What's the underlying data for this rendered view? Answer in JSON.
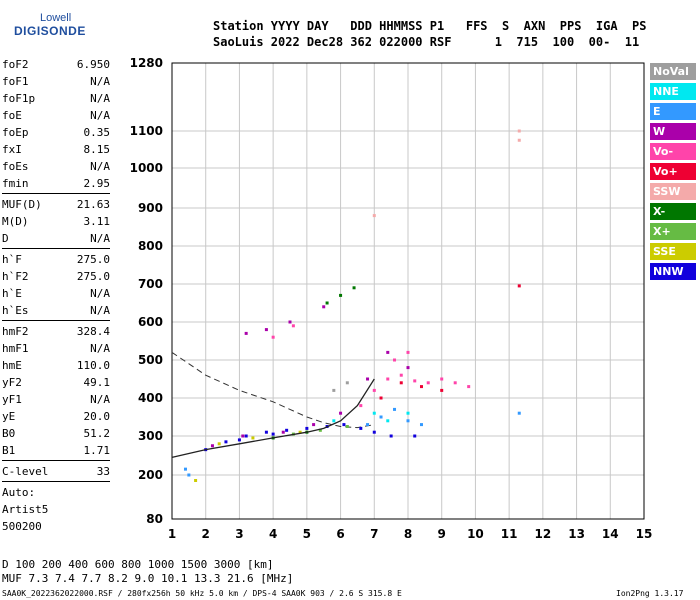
{
  "logo": {
    "top": "Lowell",
    "bottom": "DIGISONDE"
  },
  "header": {
    "labels": "Station YYYY DAY   DDD HHMMSS P1   FFS  S  AXN  PPS  IGA  PS",
    "values": "SaoLuis 2022 Dec28 362 022000 RSF      1  715  100  00-  11"
  },
  "params": [
    {
      "name": "foF2",
      "value": "6.950"
    },
    {
      "name": "foF1",
      "value": "N/A"
    },
    {
      "name": "foF1p",
      "value": "N/A"
    },
    {
      "name": "foE",
      "value": "N/A"
    },
    {
      "name": "foEp",
      "value": "0.35"
    },
    {
      "name": "fxI",
      "value": "8.15"
    },
    {
      "name": "foEs",
      "value": "N/A"
    },
    {
      "name": "fmin",
      "value": "2.95"
    },
    {
      "name": "MUF(D)",
      "value": "21.63"
    },
    {
      "name": "M(D)",
      "value": "3.11"
    },
    {
      "name": "D",
      "value": "N/A"
    },
    {
      "name": "h`F",
      "value": "275.0"
    },
    {
      "name": "h`F2",
      "value": "275.0"
    },
    {
      "name": "h`E",
      "value": "N/A"
    },
    {
      "name": "h`Es",
      "value": "N/A"
    },
    {
      "name": "hmF2",
      "value": "328.4"
    },
    {
      "name": "hmF1",
      "value": "N/A"
    },
    {
      "name": "hmE",
      "value": "110.0"
    },
    {
      "name": "yF2",
      "value": "49.1"
    },
    {
      "name": "yF1",
      "value": "N/A"
    },
    {
      "name": "yE",
      "value": "20.0"
    },
    {
      "name": "B0",
      "value": "51.2"
    },
    {
      "name": "B1",
      "value": "1.71"
    },
    {
      "name": "C-level",
      "value": "33"
    }
  ],
  "auto": {
    "line1": "Auto:",
    "line2": "Artist5",
    "line3": "500200"
  },
  "legend": [
    {
      "label": "NoVal",
      "color": "#9e9e9e"
    },
    {
      "label": "NNE",
      "color": "#00e8f0"
    },
    {
      "label": "E",
      "color": "#3399ff"
    },
    {
      "label": "W",
      "color": "#aa00aa"
    },
    {
      "label": "Vo-",
      "color": "#ff44aa"
    },
    {
      "label": "Vo+",
      "color": "#ee0033"
    },
    {
      "label": "SSW",
      "color": "#f4aaaa"
    },
    {
      "label": "X-",
      "color": "#007700"
    },
    {
      "label": "X+",
      "color": "#66bb44"
    },
    {
      "label": "SSE",
      "color": "#cccc00"
    },
    {
      "label": "NNW",
      "color": "#1100dd"
    }
  ],
  "footer": {
    "d_line": "D     100  200  400  600  800 1000 1500 3000 [km]",
    "muf_line": "MUF   7.3  7.4  7.7  8.2  9.0 10.1 13.3 21.6 [MHz]",
    "file_line": "SAA0K_2022362022000.RSF / 280fx256h 50 kHz 5.0 km / DPS-4 SAA0K 903 / 2.6 S 315.8 E",
    "version": "Ion2Png 1.3.17"
  },
  "chart_data": {
    "type": "scatter",
    "xlim": [
      1,
      15
    ],
    "ylim": [
      80,
      1280
    ],
    "xticks": [
      "1",
      "2",
      "3",
      "4",
      "5",
      "6",
      "7",
      "8",
      "9",
      "10",
      "11",
      "12",
      "13",
      "14",
      "15"
    ],
    "yticks": [
      "80",
      "200",
      "300",
      "400",
      "500",
      "600",
      "700",
      "800",
      "900",
      "1000",
      "1100",
      "1280"
    ],
    "yscale": "ionogram (compressed virtual height)",
    "grid": true,
    "legend_position": "right",
    "series": [
      {
        "name": "NNW",
        "color": "#1100dd",
        "points": [
          [
            2.0,
            265
          ],
          [
            2.6,
            285
          ],
          [
            3.2,
            300
          ],
          [
            3.8,
            310
          ],
          [
            4.4,
            315
          ],
          [
            5.0,
            320
          ],
          [
            5.6,
            325
          ],
          [
            6.1,
            330
          ],
          [
            6.6,
            320
          ],
          [
            7.0,
            310
          ],
          [
            7.5,
            300
          ],
          [
            8.2,
            300
          ],
          [
            3.0,
            290
          ],
          [
            4.0,
            305
          ]
        ]
      },
      {
        "name": "Vo-",
        "color": "#ff44aa",
        "points": [
          [
            6.6,
            380
          ],
          [
            7.0,
            420
          ],
          [
            7.4,
            450
          ],
          [
            7.8,
            460
          ],
          [
            8.2,
            445
          ],
          [
            8.6,
            440
          ],
          [
            9.0,
            450
          ],
          [
            9.4,
            440
          ],
          [
            9.8,
            430
          ],
          [
            7.6,
            500
          ],
          [
            8.0,
            520
          ],
          [
            4.0,
            560
          ],
          [
            4.6,
            590
          ]
        ]
      },
      {
        "name": "Vo+",
        "color": "#ee0033",
        "points": [
          [
            7.2,
            400
          ],
          [
            7.8,
            440
          ],
          [
            8.4,
            430
          ],
          [
            9.0,
            420
          ],
          [
            11.3,
            695
          ]
        ]
      },
      {
        "name": "W",
        "color": "#aa00aa",
        "points": [
          [
            2.2,
            275
          ],
          [
            3.1,
            300
          ],
          [
            4.3,
            310
          ],
          [
            5.2,
            330
          ],
          [
            6.0,
            360
          ],
          [
            6.8,
            450
          ],
          [
            7.4,
            520
          ],
          [
            8.0,
            480
          ],
          [
            3.2,
            570
          ],
          [
            3.8,
            580
          ],
          [
            4.5,
            600
          ],
          [
            5.5,
            640
          ]
        ]
      },
      {
        "name": "E",
        "color": "#3399ff",
        "points": [
          [
            6.8,
            330
          ],
          [
            7.2,
            350
          ],
          [
            7.6,
            370
          ],
          [
            8.0,
            340
          ],
          [
            8.4,
            330
          ],
          [
            1.4,
            215
          ],
          [
            1.5,
            200
          ],
          [
            11.3,
            360
          ]
        ]
      },
      {
        "name": "NNE",
        "color": "#00e8f0",
        "points": [
          [
            7.0,
            360
          ],
          [
            7.4,
            340
          ],
          [
            8.0,
            360
          ],
          [
            5.8,
            340
          ]
        ]
      },
      {
        "name": "X-",
        "color": "#007700",
        "points": [
          [
            4.0,
            295
          ],
          [
            5.0,
            310
          ],
          [
            5.6,
            650
          ],
          [
            6.0,
            670
          ],
          [
            6.4,
            690
          ]
        ]
      },
      {
        "name": "X+",
        "color": "#66bb44",
        "points": [
          [
            4.6,
            305
          ],
          [
            5.4,
            315
          ],
          [
            6.2,
            325
          ]
        ]
      },
      {
        "name": "SSE",
        "color": "#cccc00",
        "points": [
          [
            2.4,
            280
          ],
          [
            3.4,
            295
          ],
          [
            4.8,
            310
          ],
          [
            1.7,
            185
          ]
        ]
      },
      {
        "name": "SSW",
        "color": "#f4aaaa",
        "points": [
          [
            11.3,
            1075
          ],
          [
            11.3,
            1100
          ],
          [
            7.0,
            880
          ]
        ]
      },
      {
        "name": "NoVal",
        "color": "#9e9e9e",
        "points": [
          [
            6.2,
            440
          ],
          [
            5.8,
            420
          ]
        ]
      }
    ],
    "dashed_curve": {
      "x": [
        1.0,
        1.5,
        2.0,
        2.5,
        3.0,
        3.5,
        4.0,
        4.5,
        5.0,
        5.5,
        6.0,
        6.5,
        7.0
      ],
      "y": [
        520,
        490,
        460,
        440,
        420,
        405,
        390,
        370,
        350,
        335,
        325,
        322,
        330
      ]
    },
    "solid_curve": {
      "x": [
        1.0,
        2.0,
        3.0,
        4.0,
        5.0,
        5.5,
        6.0,
        6.5,
        7.0
      ],
      "y": [
        245,
        265,
        280,
        295,
        310,
        320,
        340,
        380,
        450
      ]
    }
  }
}
